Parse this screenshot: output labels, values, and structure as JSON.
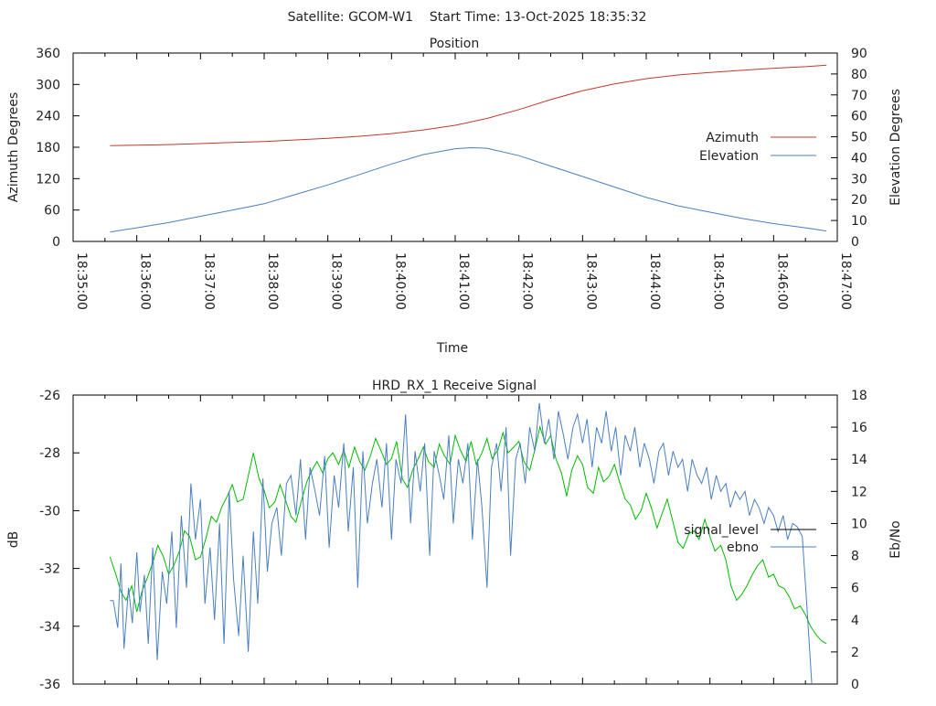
{
  "header": {
    "title": "Satellite: GCOM-W1    Start Time: 13-Oct-2025 18:35:32"
  },
  "chart_data": [
    {
      "type": "line",
      "title": "Position",
      "xlabel": "Time",
      "ylabel": "Azimuth Degrees",
      "y2label": "Elevation Degrees",
      "xlim_minutes": [
        0,
        12
      ],
      "x_ticks": [
        "18:35:00",
        "18:36:00",
        "18:37:00",
        "18:38:00",
        "18:39:00",
        "18:40:00",
        "18:41:00",
        "18:42:00",
        "18:43:00",
        "18:44:00",
        "18:45:00",
        "18:46:00",
        "18:47:00"
      ],
      "ylim": [
        0,
        360
      ],
      "y_ticks": [
        "0",
        "60",
        "120",
        "180",
        "240",
        "300",
        "360"
      ],
      "y2lim": [
        0,
        90
      ],
      "y2_ticks": [
        "0",
        "10",
        "20",
        "30",
        "40",
        "50",
        "60",
        "70",
        "80",
        "90"
      ],
      "legend_position": "right",
      "series": [
        {
          "name": "Azimuth",
          "axis": "y",
          "color": "#c0392b",
          "x_min": [
            0.58,
            1,
            1.5,
            2,
            2.5,
            3,
            3.5,
            4,
            4.5,
            5,
            5.5,
            6,
            6.5,
            7,
            7.5,
            8,
            8.5,
            9,
            9.5,
            10,
            10.5,
            11,
            11.5,
            11.83
          ],
          "values": [
            183,
            184,
            185,
            187,
            189,
            191,
            194,
            197,
            201,
            206,
            213,
            222,
            235,
            252,
            271,
            288,
            301,
            311,
            318,
            323,
            327,
            331,
            334,
            337
          ]
        },
        {
          "name": "Elevation",
          "axis": "y2",
          "color": "#4a7fc1",
          "x_min": [
            0.58,
            1,
            1.5,
            2,
            2.5,
            3,
            3.5,
            4,
            4.5,
            5,
            5.5,
            6,
            6.25,
            6.5,
            7,
            7.5,
            8,
            8.5,
            9,
            9.5,
            10,
            10.5,
            11,
            11.5,
            11.83
          ],
          "values": [
            4.5,
            6.5,
            9,
            12,
            15,
            18,
            22.5,
            27,
            32,
            37,
            41.5,
            44.3,
            44.8,
            44.5,
            41,
            36,
            31,
            26,
            21,
            17,
            14,
            11,
            8.5,
            6.5,
            5
          ]
        }
      ]
    },
    {
      "type": "line",
      "title": "HRD_RX_1 Receive Signal",
      "ylabel": "dB",
      "y2label": "Eb/No",
      "xlim_minutes": [
        0,
        12
      ],
      "ylim": [
        -36,
        -26
      ],
      "y_ticks": [
        "-36",
        "-34",
        "-32",
        "-30",
        "-28",
        "-26"
      ],
      "y2lim": [
        0,
        18
      ],
      "y2_ticks": [
        "0",
        "2",
        "4",
        "6",
        "8",
        "10",
        "12",
        "14",
        "16",
        "18"
      ],
      "legend_position": "right",
      "legend_colors": {
        "signal_level": "#000000",
        "ebno": "#4a7fc1"
      },
      "series": [
        {
          "name": "signal_level",
          "axis": "y",
          "color": "#00bb00",
          "x_min": [
            0.58,
            0.67,
            0.75,
            0.83,
            0.92,
            1,
            1.08,
            1.17,
            1.25,
            1.33,
            1.42,
            1.5,
            1.58,
            1.67,
            1.75,
            1.83,
            1.92,
            2,
            2.08,
            2.17,
            2.25,
            2.33,
            2.42,
            2.5,
            2.58,
            2.67,
            2.75,
            2.83,
            2.92,
            3,
            3.08,
            3.17,
            3.25,
            3.33,
            3.42,
            3.5,
            3.58,
            3.67,
            3.75,
            3.83,
            3.92,
            4,
            4.08,
            4.17,
            4.25,
            4.33,
            4.42,
            4.5,
            4.58,
            4.67,
            4.75,
            4.83,
            4.92,
            5,
            5.08,
            5.17,
            5.25,
            5.33,
            5.42,
            5.5,
            5.58,
            5.67,
            5.75,
            5.83,
            5.92,
            6,
            6.08,
            6.17,
            6.25,
            6.33,
            6.42,
            6.5,
            6.58,
            6.67,
            6.75,
            6.83,
            6.92,
            7,
            7.08,
            7.17,
            7.25,
            7.33,
            7.42,
            7.5,
            7.58,
            7.67,
            7.75,
            7.83,
            7.92,
            8,
            8.08,
            8.17,
            8.25,
            8.33,
            8.42,
            8.5,
            8.58,
            8.67,
            8.75,
            8.83,
            8.92,
            9,
            9.08,
            9.17,
            9.25,
            9.33,
            9.42,
            9.5,
            9.58,
            9.67,
            9.75,
            9.83,
            9.92,
            10,
            10.08,
            10.17,
            10.25,
            10.33,
            10.42,
            10.5,
            10.58,
            10.67,
            10.75,
            10.83,
            10.92,
            11,
            11.08,
            11.17,
            11.25,
            11.33,
            11.42,
            11.5,
            11.58,
            11.67,
            11.75,
            11.83
          ],
          "values": [
            -31.6,
            -32.2,
            -32.8,
            -33.1,
            -32.6,
            -33.5,
            -32.8,
            -32.3,
            -31.8,
            -31.2,
            -31.6,
            -32.2,
            -31.9,
            -31.4,
            -30.7,
            -30.9,
            -31.7,
            -31.6,
            -31.0,
            -30.2,
            -30.4,
            -29.9,
            -29.5,
            -29.1,
            -29.7,
            -29.6,
            -28.8,
            -28.0,
            -28.9,
            -29.3,
            -29.9,
            -29.7,
            -29.1,
            -29.6,
            -30.2,
            -30.4,
            -29.7,
            -29.0,
            -28.6,
            -28.3,
            -28.7,
            -28.2,
            -28.0,
            -28.4,
            -27.9,
            -28.5,
            -27.8,
            -28.3,
            -28.6,
            -28.1,
            -27.5,
            -27.9,
            -28.4,
            -28.2,
            -27.6,
            -28.9,
            -29.2,
            -28.6,
            -28.2,
            -27.8,
            -28.3,
            -28.5,
            -27.7,
            -28.1,
            -28.4,
            -27.4,
            -27.9,
            -28.3,
            -27.6,
            -28.4,
            -28.0,
            -27.5,
            -28.2,
            -27.9,
            -27.3,
            -28.0,
            -27.8,
            -27.6,
            -28.3,
            -28.6,
            -27.9,
            -27.1,
            -27.7,
            -27.4,
            -28.2,
            -28.7,
            -29.5,
            -28.6,
            -28.1,
            -28.4,
            -29.2,
            -29.4,
            -28.5,
            -29.0,
            -28.8,
            -28.4,
            -29.0,
            -29.6,
            -29.8,
            -30.3,
            -30.0,
            -29.4,
            -29.9,
            -30.6,
            -30.1,
            -29.6,
            -30.4,
            -31.1,
            -31.3,
            -30.8,
            -30.7,
            -31.0,
            -30.3,
            -30.9,
            -31.4,
            -31.2,
            -31.7,
            -32.6,
            -33.1,
            -32.9,
            -32.6,
            -32.2,
            -31.9,
            -31.7,
            -32.3,
            -32.2,
            -32.6,
            -32.7,
            -33.0,
            -33.4,
            -33.3,
            -33.6,
            -34.0,
            -34.3,
            -34.5,
            -34.6
          ]
        },
        {
          "name": "ebno",
          "axis": "y2",
          "color": "#4a7fc1",
          "x_min": [
            0.58,
            0.63,
            0.7,
            0.75,
            0.8,
            0.87,
            0.93,
            1,
            1.05,
            1.12,
            1.18,
            1.25,
            1.32,
            1.4,
            1.47,
            1.55,
            1.62,
            1.7,
            1.78,
            1.85,
            1.92,
            2,
            2.07,
            2.15,
            2.22,
            2.3,
            2.37,
            2.45,
            2.52,
            2.6,
            2.67,
            2.75,
            2.83,
            2.9,
            2.98,
            3.05,
            3.12,
            3.2,
            3.27,
            3.35,
            3.42,
            3.5,
            3.57,
            3.65,
            3.72,
            3.8,
            3.87,
            3.95,
            4.02,
            4.1,
            4.17,
            4.25,
            4.32,
            4.4,
            4.47,
            4.55,
            4.62,
            4.7,
            4.77,
            4.85,
            4.92,
            5,
            5.07,
            5.15,
            5.22,
            5.3,
            5.37,
            5.45,
            5.52,
            5.6,
            5.67,
            5.75,
            5.82,
            5.9,
            5.97,
            6.05,
            6.12,
            6.2,
            6.27,
            6.35,
            6.42,
            6.5,
            6.57,
            6.65,
            6.72,
            6.8,
            6.87,
            6.95,
            7.02,
            7.1,
            7.17,
            7.25,
            7.32,
            7.4,
            7.47,
            7.55,
            7.62,
            7.7,
            7.77,
            7.85,
            7.92,
            8,
            8.07,
            8.15,
            8.22,
            8.3,
            8.37,
            8.45,
            8.52,
            8.6,
            8.67,
            8.75,
            8.82,
            8.9,
            8.97,
            9.05,
            9.12,
            9.2,
            9.27,
            9.35,
            9.42,
            9.5,
            9.57,
            9.65,
            9.72,
            9.8,
            9.87,
            9.95,
            10.02,
            10.1,
            10.17,
            10.25,
            10.32,
            10.4,
            10.47,
            10.55,
            10.62,
            10.7,
            10.77,
            10.85,
            10.92,
            11,
            11.07,
            11.15,
            11.22,
            11.3,
            11.37,
            11.45,
            11.52,
            11.6,
            11.67,
            11.75,
            11.78,
            11.8,
            11.83
          ],
          "values": [
            5.2,
            5.2,
            3.5,
            7.5,
            2.2,
            6,
            3.8,
            8.2,
            4.5,
            6.8,
            2.5,
            8.5,
            1.5,
            7,
            5,
            9.5,
            3.5,
            10.5,
            6,
            12.5,
            9,
            11.5,
            5,
            8.5,
            4,
            10,
            2.5,
            12,
            6.5,
            3,
            8,
            2,
            9.5,
            5,
            12.8,
            7,
            10,
            11,
            8,
            12.5,
            13,
            10.5,
            14,
            9,
            13.5,
            12,
            10.5,
            14.2,
            8.5,
            13,
            11,
            15,
            9.5,
            13.5,
            6,
            14.5,
            10,
            12.5,
            14,
            11,
            15,
            9,
            14,
            12.5,
            16.8,
            10,
            14.5,
            12,
            15,
            8,
            14.5,
            13,
            11.5,
            15.5,
            10,
            14,
            12.5,
            15,
            9,
            14,
            11,
            6,
            13.5,
            15,
            12,
            16,
            8,
            14,
            15,
            12.5,
            16,
            14.5,
            17.5,
            15,
            16.5,
            14,
            17,
            15.5,
            14,
            16,
            16.8,
            15,
            16.5,
            13.5,
            16,
            15,
            17,
            14.5,
            16,
            13,
            15.5,
            14.5,
            16,
            13.5,
            15,
            14,
            12.5,
            14.5,
            15,
            13,
            14.5,
            13.5,
            14,
            12,
            14,
            13,
            12.5,
            13.5,
            11.5,
            13,
            12,
            12.5,
            11,
            12,
            11.5,
            12,
            10.5,
            11.5,
            11,
            10,
            11,
            10.5,
            9.5,
            10.5,
            9,
            10,
            9.8,
            9.2,
            5,
            0
          ]
        }
      ]
    }
  ]
}
